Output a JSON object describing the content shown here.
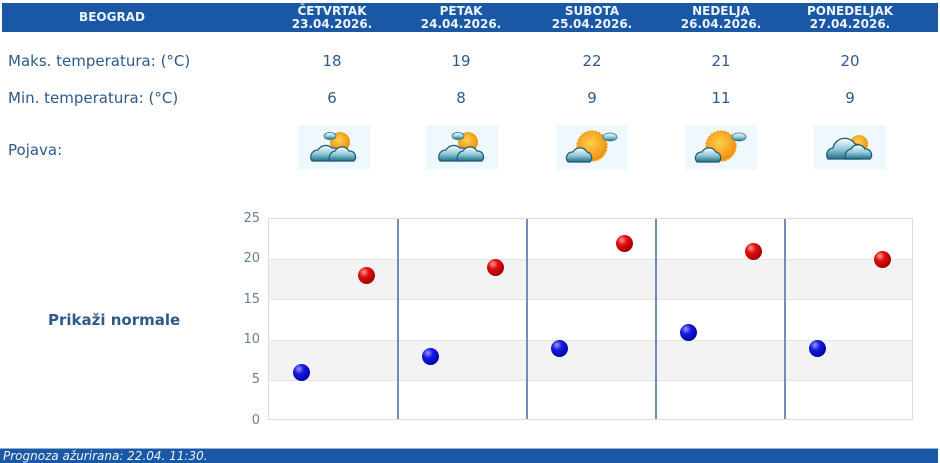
{
  "header": {
    "city": "BEOGRAD",
    "days": [
      {
        "name": "ČETVRTAK",
        "date": "23.04.2026."
      },
      {
        "name": "PETAK",
        "date": "24.04.2026."
      },
      {
        "name": "SUBOTA",
        "date": "25.04.2026."
      },
      {
        "name": "NEDELJA",
        "date": "26.04.2026."
      },
      {
        "name": "PONEDELJAK",
        "date": "27.04.2026."
      }
    ]
  },
  "rows": {
    "max_label": "Maks. temperatura: (°C)",
    "min_label": "Min. temperatura: (°C)",
    "phenomenon_label": "Pojava:"
  },
  "forecast": [
    {
      "max": "18",
      "min": "6",
      "icon": "partly-cloudy-sun-icon"
    },
    {
      "max": "19",
      "min": "8",
      "icon": "partly-cloudy-sun-icon"
    },
    {
      "max": "22",
      "min": "9",
      "icon": "mostly-sunny-icon"
    },
    {
      "max": "21",
      "min": "11",
      "icon": "mostly-sunny-icon"
    },
    {
      "max": "20",
      "min": "9",
      "icon": "cloudy-sun-behind-icon"
    }
  ],
  "normals_link": "Prikaži normale",
  "footer": {
    "updated": "Prognoza ažurirana:  22.04. 11:30."
  },
  "colors": {
    "header_bg": "#1a57a5",
    "text": "#2d5a8c",
    "max_dot": "#d00000",
    "min_dot": "#0000c0",
    "divider": "#6f8fb3"
  },
  "chart_data": {
    "type": "scatter",
    "title": "",
    "xlabel": "",
    "ylabel": "",
    "categories": [
      "23.04.2026.",
      "24.04.2026.",
      "25.04.2026.",
      "26.04.2026.",
      "27.04.2026."
    ],
    "series": [
      {
        "name": "Min. temperatura",
        "color": "#0000c0",
        "values": [
          6,
          8,
          9,
          11,
          9
        ]
      },
      {
        "name": "Maks. temperatura",
        "color": "#d00000",
        "values": [
          18,
          19,
          22,
          21,
          20
        ]
      }
    ],
    "yticks": [
      0,
      5,
      10,
      15,
      20,
      25
    ],
    "ylim": [
      0,
      25
    ],
    "grid": "alternating horizontal bands",
    "legend": "none"
  }
}
